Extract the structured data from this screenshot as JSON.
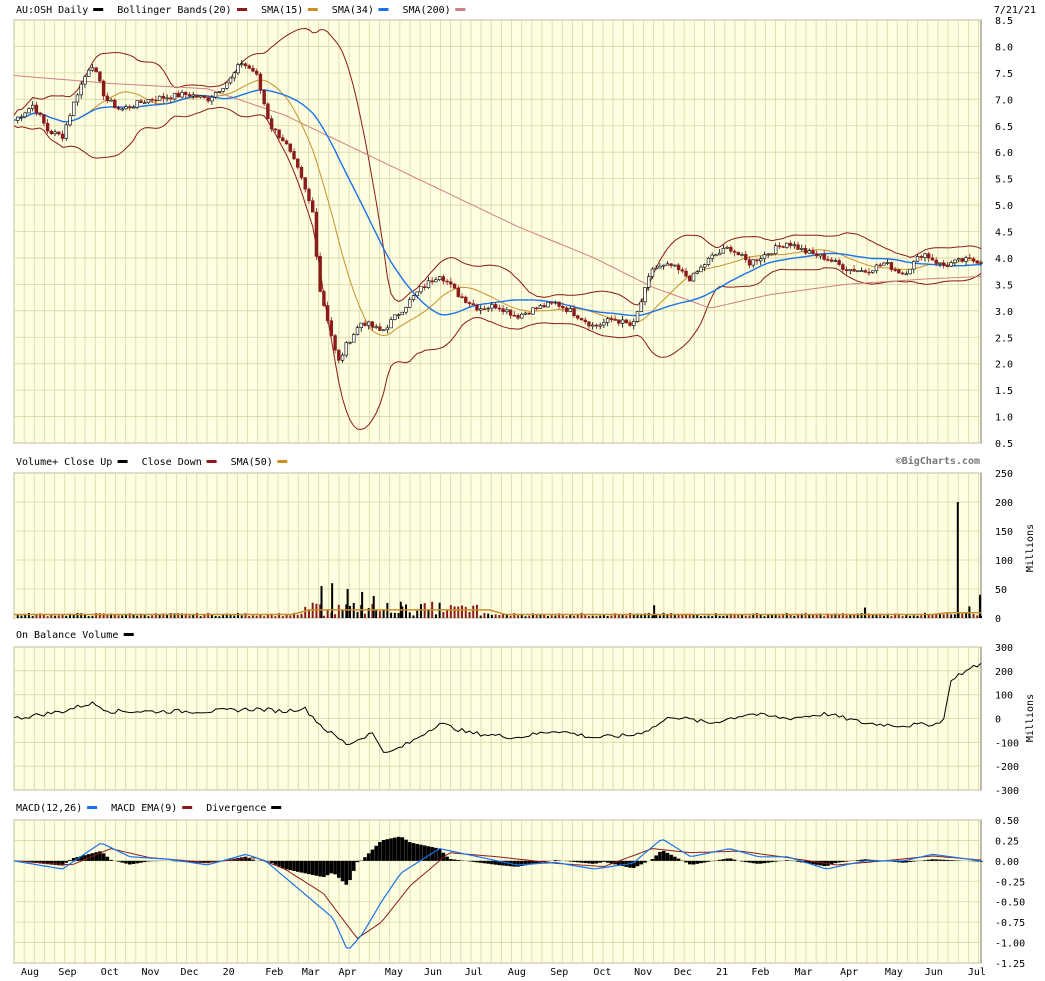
{
  "date_label": "7/21/21",
  "panels": {
    "price": {
      "legend": [
        {
          "text": "AU:OSH Daily",
          "color": "#000000"
        },
        {
          "text": "Bollinger Bands(20)",
          "color": "#8b1a1a"
        },
        {
          "text": "SMA(15)",
          "color": "#c8902a"
        },
        {
          "text": "SMA(34)",
          "color": "#1a73e8"
        },
        {
          "text": "SMA(200)",
          "color": "#d08080"
        }
      ]
    },
    "volume": {
      "legend": [
        {
          "text": "Volume+ Close Up",
          "color": "#000000"
        },
        {
          "text": "Close Down",
          "color": "#8b1a1a"
        },
        {
          "text": "SMA(50)",
          "color": "#c8902a"
        }
      ],
      "watermark": "©BigCharts.com",
      "axis_unit": "Millions"
    },
    "obv": {
      "legend": [
        {
          "text": "On Balance Volume",
          "color": "#000000"
        }
      ],
      "axis_unit": "Millions"
    },
    "macd": {
      "legend": [
        {
          "text": "MACD(12,26)",
          "color": "#1a73e8"
        },
        {
          "text": "MACD EMA(9)",
          "color": "#8b1a1a"
        },
        {
          "text": "Divergence",
          "color": "#000000"
        }
      ]
    }
  },
  "chart_data": [
    {
      "type": "line",
      "panel": "price",
      "ylim": [
        0.5,
        8.5
      ],
      "yticks": [
        "8.5",
        "8.0",
        "7.5",
        "7.0",
        "6.5",
        "6.0",
        "5.5",
        "5.0",
        "4.5",
        "4.0",
        "3.5",
        "3.0",
        "2.5",
        "2.0",
        "1.5",
        "1.0",
        "0.5"
      ],
      "x_ticks": [
        "Aug",
        "Sep",
        "Oct",
        "Nov",
        "Dec",
        "20",
        "Feb",
        "Mar",
        "Apr",
        "May",
        "Jun",
        "Jul",
        "Aug",
        "Sep",
        "Oct",
        "Nov",
        "Dec",
        "21",
        "Feb",
        "Mar",
        "Apr",
        "May",
        "Jun",
        "Jul"
      ],
      "x_tick_pos": [
        0.0,
        0.046,
        0.098,
        0.148,
        0.196,
        0.244,
        0.3,
        0.345,
        0.39,
        0.447,
        0.495,
        0.545,
        0.598,
        0.65,
        0.703,
        0.753,
        0.802,
        0.85,
        0.897,
        0.95,
        1.006,
        1.061,
        1.11,
        1.163
      ],
      "price_anchors": [
        [
          0,
          6.6
        ],
        [
          0.02,
          6.9
        ],
        [
          0.035,
          6.4
        ],
        [
          0.05,
          6.3
        ],
        [
          0.065,
          7.1
        ],
        [
          0.08,
          7.7
        ],
        [
          0.095,
          7.0
        ],
        [
          0.11,
          6.8
        ],
        [
          0.14,
          7.0
        ],
        [
          0.18,
          7.1
        ],
        [
          0.2,
          7.0
        ],
        [
          0.225,
          7.4
        ],
        [
          0.235,
          7.7
        ],
        [
          0.25,
          7.5
        ],
        [
          0.265,
          6.5
        ],
        [
          0.28,
          6.2
        ],
        [
          0.295,
          5.6
        ],
        [
          0.31,
          4.8
        ],
        [
          0.315,
          3.5
        ],
        [
          0.325,
          2.8
        ],
        [
          0.335,
          2.0
        ],
        [
          0.345,
          2.4
        ],
        [
          0.36,
          2.8
        ],
        [
          0.38,
          2.6
        ],
        [
          0.4,
          3.0
        ],
        [
          0.42,
          3.4
        ],
        [
          0.44,
          3.7
        ],
        [
          0.46,
          3.3
        ],
        [
          0.48,
          3.05
        ],
        [
          0.5,
          3.1
        ],
        [
          0.52,
          2.9
        ],
        [
          0.54,
          3.05
        ],
        [
          0.56,
          3.15
        ],
        [
          0.58,
          2.95
        ],
        [
          0.6,
          2.7
        ],
        [
          0.62,
          2.85
        ],
        [
          0.64,
          2.7
        ],
        [
          0.66,
          3.8
        ],
        [
          0.68,
          3.85
        ],
        [
          0.7,
          3.6
        ],
        [
          0.72,
          4.0
        ],
        [
          0.74,
          4.2
        ],
        [
          0.76,
          3.9
        ],
        [
          0.78,
          4.1
        ],
        [
          0.8,
          4.3
        ],
        [
          0.82,
          4.1
        ],
        [
          0.84,
          4.0
        ],
        [
          0.86,
          3.8
        ],
        [
          0.88,
          3.75
        ],
        [
          0.9,
          3.9
        ],
        [
          0.92,
          3.7
        ],
        [
          0.94,
          4.1
        ],
        [
          0.96,
          3.85
        ],
        [
          0.98,
          3.95
        ],
        [
          1.0,
          3.95
        ]
      ],
      "sma200_anchors": [
        [
          0,
          7.45
        ],
        [
          0.1,
          7.3
        ],
        [
          0.2,
          7.2
        ],
        [
          0.28,
          6.7
        ],
        [
          0.36,
          6.0
        ],
        [
          0.44,
          5.3
        ],
        [
          0.52,
          4.6
        ],
        [
          0.6,
          4.0
        ],
        [
          0.66,
          3.45
        ],
        [
          0.72,
          3.05
        ],
        [
          0.78,
          3.3
        ],
        [
          0.86,
          3.5
        ],
        [
          0.94,
          3.6
        ],
        [
          1.0,
          3.65
        ]
      ]
    },
    {
      "type": "bar",
      "panel": "volume",
      "ylim": [
        0,
        250
      ],
      "yticks": [
        "250",
        "200",
        "150",
        "100",
        "50",
        "0"
      ],
      "spikes": [
        [
          0.318,
          55
        ],
        [
          0.329,
          60
        ],
        [
          0.345,
          50
        ],
        [
          0.36,
          45
        ],
        [
          0.372,
          38
        ],
        [
          0.4,
          28
        ],
        [
          0.662,
          22
        ],
        [
          0.88,
          18
        ],
        [
          0.976,
          200
        ],
        [
          0.988,
          20
        ],
        [
          0.999,
          40
        ]
      ]
    },
    {
      "type": "line",
      "panel": "obv",
      "ylim": [
        -300,
        300
      ],
      "yticks": [
        "300",
        "200",
        "100",
        "0",
        "-100",
        "-200",
        "-300"
      ],
      "anchors": [
        [
          0,
          0
        ],
        [
          0.05,
          30
        ],
        [
          0.08,
          65
        ],
        [
          0.1,
          30
        ],
        [
          0.2,
          30
        ],
        [
          0.25,
          40
        ],
        [
          0.28,
          30
        ],
        [
          0.3,
          45
        ],
        [
          0.32,
          -40
        ],
        [
          0.345,
          -110
        ],
        [
          0.37,
          -60
        ],
        [
          0.385,
          -150
        ],
        [
          0.41,
          -100
        ],
        [
          0.44,
          -20
        ],
        [
          0.47,
          -60
        ],
        [
          0.52,
          -80
        ],
        [
          0.56,
          -50
        ],
        [
          0.6,
          -80
        ],
        [
          0.64,
          -70
        ],
        [
          0.66,
          -40
        ],
        [
          0.68,
          10
        ],
        [
          0.72,
          -20
        ],
        [
          0.76,
          20
        ],
        [
          0.8,
          0
        ],
        [
          0.84,
          20
        ],
        [
          0.88,
          -20
        ],
        [
          0.92,
          -30
        ],
        [
          0.96,
          -20
        ],
        [
          0.97,
          170
        ],
        [
          1.0,
          230
        ]
      ]
    },
    {
      "type": "line",
      "panel": "macd",
      "ylim": [
        -1.25,
        0.5
      ],
      "yticks": [
        "0.50",
        "0.25",
        "0.00",
        "-0.25",
        "-0.50",
        "-0.75",
        "-1.00",
        "-1.25"
      ],
      "macd_anchors": [
        [
          0,
          0
        ],
        [
          0.05,
          -0.1
        ],
        [
          0.09,
          0.22
        ],
        [
          0.12,
          0.05
        ],
        [
          0.16,
          0.02
        ],
        [
          0.2,
          -0.05
        ],
        [
          0.24,
          0.08
        ],
        [
          0.26,
          0.0
        ],
        [
          0.29,
          -0.3
        ],
        [
          0.33,
          -0.7
        ],
        [
          0.345,
          -1.1
        ],
        [
          0.36,
          -0.9
        ],
        [
          0.38,
          -0.5
        ],
        [
          0.4,
          -0.15
        ],
        [
          0.44,
          0.15
        ],
        [
          0.48,
          0.05
        ],
        [
          0.52,
          -0.05
        ],
        [
          0.56,
          -0.02
        ],
        [
          0.6,
          -0.1
        ],
        [
          0.64,
          -0.03
        ],
        [
          0.67,
          0.27
        ],
        [
          0.7,
          0.05
        ],
        [
          0.74,
          0.15
        ],
        [
          0.77,
          0.05
        ],
        [
          0.8,
          0.05
        ],
        [
          0.84,
          -0.1
        ],
        [
          0.88,
          0.0
        ],
        [
          0.92,
          0.0
        ],
        [
          0.95,
          0.08
        ],
        [
          1.0,
          0.0
        ]
      ],
      "signal_anchors": [
        [
          0,
          0
        ],
        [
          0.06,
          -0.05
        ],
        [
          0.1,
          0.15
        ],
        [
          0.14,
          0.04
        ],
        [
          0.2,
          -0.02
        ],
        [
          0.25,
          0.04
        ],
        [
          0.28,
          -0.1
        ],
        [
          0.32,
          -0.4
        ],
        [
          0.355,
          -0.95
        ],
        [
          0.38,
          -0.75
        ],
        [
          0.41,
          -0.3
        ],
        [
          0.45,
          0.1
        ],
        [
          0.5,
          0.05
        ],
        [
          0.56,
          -0.03
        ],
        [
          0.61,
          -0.07
        ],
        [
          0.66,
          0.15
        ],
        [
          0.7,
          0.1
        ],
        [
          0.75,
          0.12
        ],
        [
          0.8,
          0.04
        ],
        [
          0.85,
          -0.05
        ],
        [
          0.9,
          0.0
        ],
        [
          0.95,
          0.06
        ],
        [
          1.0,
          0.01
        ]
      ]
    }
  ]
}
